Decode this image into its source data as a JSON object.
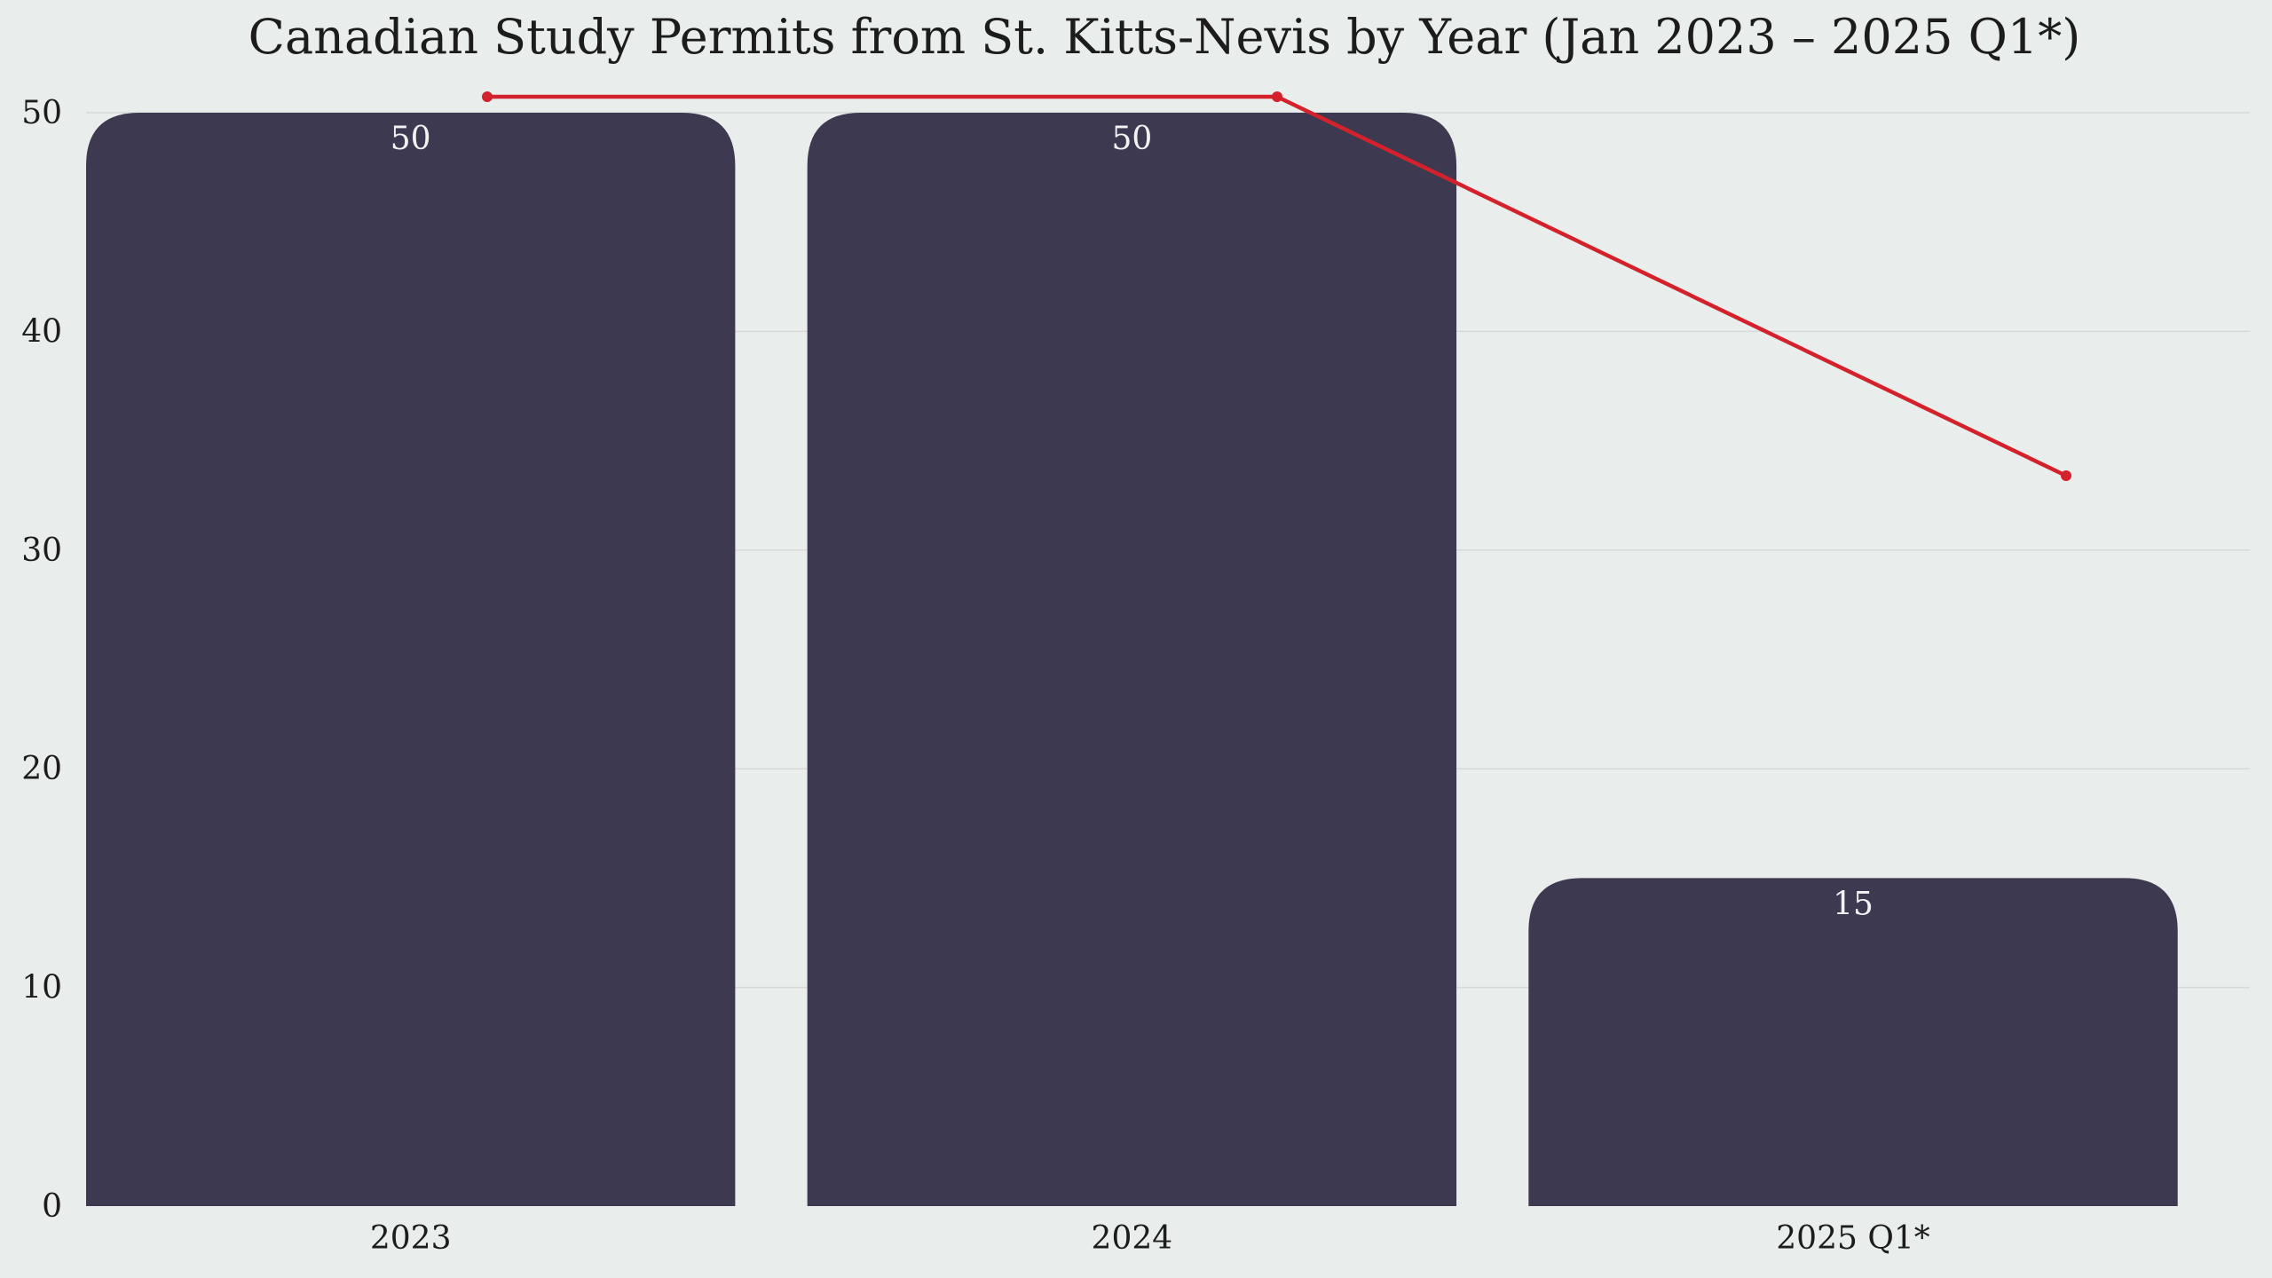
{
  "chart_data": {
    "type": "bar",
    "title": "Canadian Study Permits from St. Kitts-Nevis by Year (Jan 2023 – 2025 Q1*)",
    "xlabel": "",
    "ylabel": "",
    "categories": [
      "2023",
      "2024",
      "2025 Q1*"
    ],
    "values": [
      50,
      50,
      15
    ],
    "data_labels": [
      "50",
      "50",
      "15"
    ],
    "ylim": [
      0,
      50
    ],
    "yticks": [
      0,
      10,
      20,
      30,
      40,
      50
    ],
    "ytick_labels": [
      "0",
      "10",
      "20",
      "30",
      "40",
      "50"
    ],
    "grid": "horizontal",
    "overlay_line": {
      "description": "trend line over bars (no axis)",
      "relative_values": [
        1.0,
        1.0,
        0.6
      ]
    },
    "colors": {
      "background": "#e9edec",
      "bar": "#3d3950",
      "bar_label": "#f2f2f2",
      "line": "#d3222c",
      "grid": "#d6d9d8",
      "text": "#1c1c1c"
    }
  }
}
